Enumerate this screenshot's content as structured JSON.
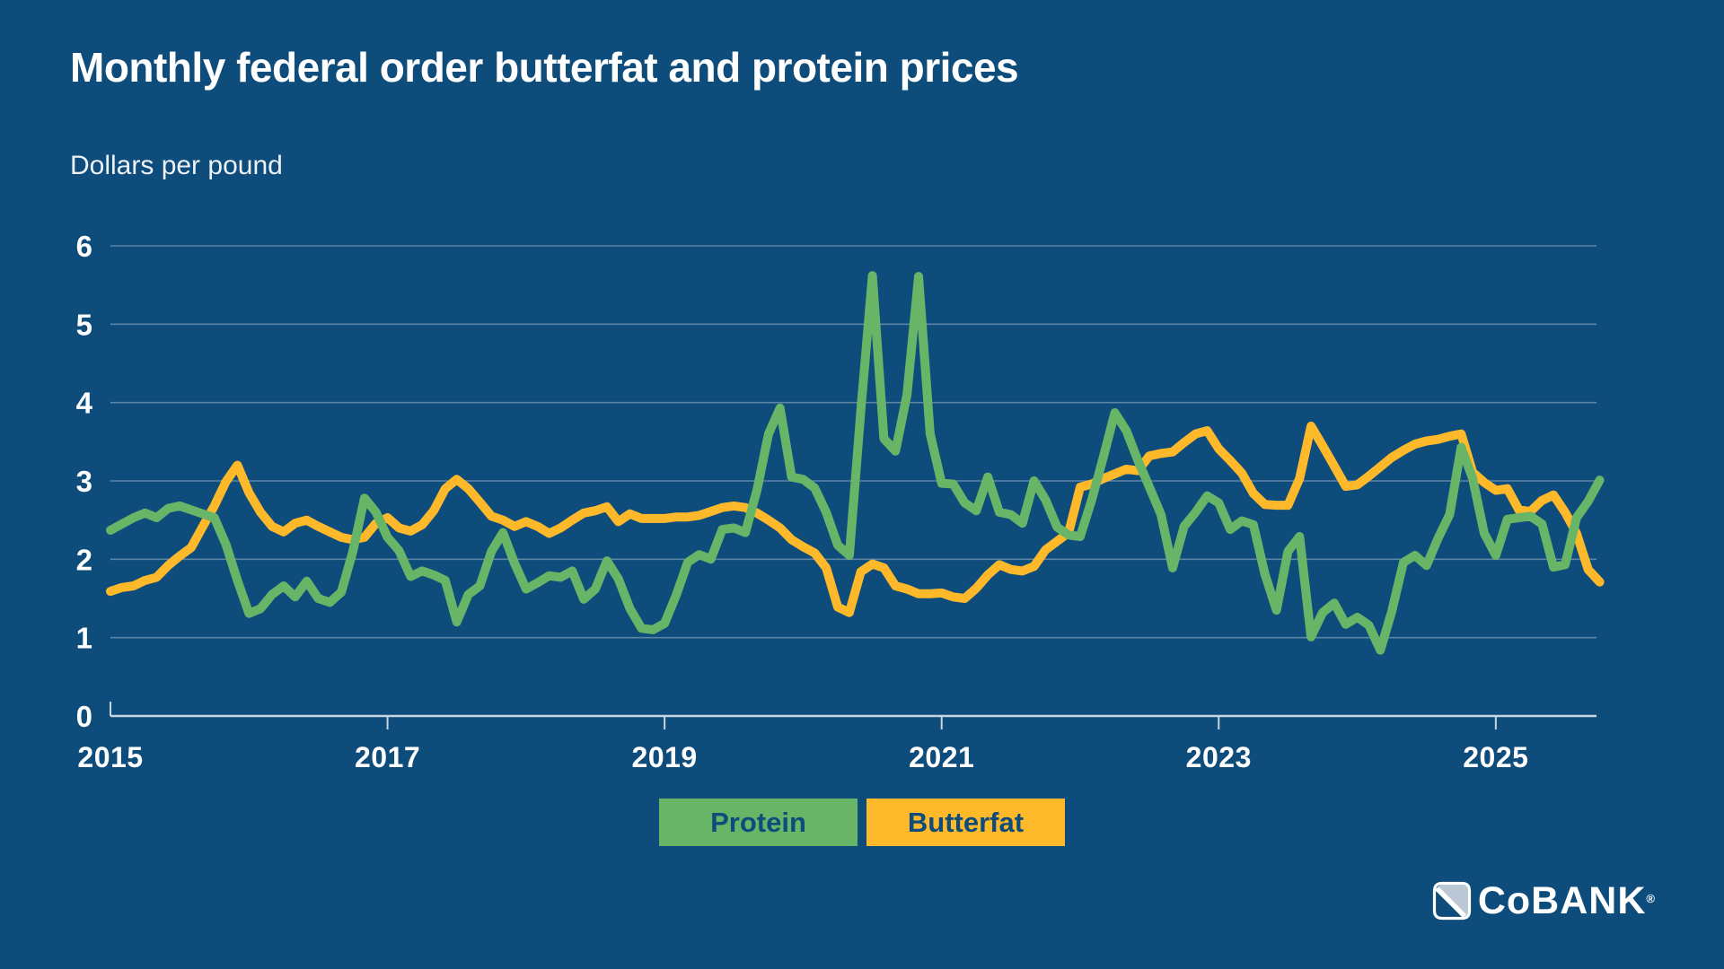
{
  "page": {
    "background": "#0D4C7B"
  },
  "header": {
    "title": "Monthly federal order butterfat and protein prices",
    "subtitle": "Dollars per pound"
  },
  "chart_data": {
    "type": "line",
    "title": "Monthly federal order butterfat and protein prices",
    "ylabel": "Dollars per pound",
    "xlabel": "",
    "grid": true,
    "ylim": [
      0,
      6
    ],
    "y_ticks": [
      0,
      1,
      2,
      3,
      4,
      5,
      6
    ],
    "x_start_year": 2015,
    "x_tick_years": [
      2015,
      2017,
      2019,
      2021,
      2023,
      2025
    ],
    "x_tick_labels": [
      "2015",
      "2017",
      "2019",
      "2021",
      "2023",
      "2025"
    ],
    "legend_position": "bottom",
    "series": [
      {
        "name": "Protein",
        "color": "#68B568",
        "values": [
          2.37,
          2.45,
          2.53,
          2.59,
          2.53,
          2.65,
          2.68,
          2.63,
          2.58,
          2.53,
          2.19,
          1.73,
          1.31,
          1.37,
          1.55,
          1.66,
          1.52,
          1.72,
          1.5,
          1.45,
          1.58,
          2.1,
          2.78,
          2.6,
          2.28,
          2.11,
          1.78,
          1.85,
          1.8,
          1.73,
          1.2,
          1.55,
          1.66,
          2.1,
          2.34,
          1.95,
          1.62,
          1.7,
          1.79,
          1.77,
          1.85,
          1.49,
          1.62,
          1.98,
          1.75,
          1.37,
          1.12,
          1.1,
          1.18,
          1.54,
          1.96,
          2.06,
          2.0,
          2.38,
          2.4,
          2.34,
          2.88,
          3.6,
          3.93,
          3.05,
          3.02,
          2.91,
          2.6,
          2.18,
          2.05,
          3.9,
          5.62,
          3.54,
          3.38,
          4.1,
          5.61,
          3.6,
          2.97,
          2.96,
          2.72,
          2.62,
          3.05,
          2.6,
          2.57,
          2.46,
          3.0,
          2.76,
          2.41,
          2.31,
          2.29,
          2.76,
          3.3,
          3.87,
          3.64,
          3.26,
          2.92,
          2.57,
          1.89,
          2.42,
          2.6,
          2.81,
          2.72,
          2.38,
          2.49,
          2.44,
          1.81,
          1.35,
          2.1,
          2.29,
          1.01,
          1.32,
          1.44,
          1.17,
          1.26,
          1.16,
          0.84,
          1.34,
          1.96,
          2.05,
          1.92,
          2.27,
          2.57,
          3.43,
          3.03,
          2.33,
          2.05,
          2.51,
          2.53,
          2.55,
          2.45,
          1.9,
          1.93,
          2.53,
          2.74,
          3.01
        ]
      },
      {
        "name": "Butterfat",
        "color": "#FDB92A",
        "values": [
          1.59,
          1.64,
          1.66,
          1.73,
          1.77,
          1.92,
          2.04,
          2.15,
          2.42,
          2.68,
          2.99,
          3.2,
          2.85,
          2.6,
          2.42,
          2.35,
          2.46,
          2.5,
          2.42,
          2.35,
          2.28,
          2.25,
          2.28,
          2.46,
          2.53,
          2.4,
          2.36,
          2.44,
          2.62,
          2.9,
          3.02,
          2.9,
          2.73,
          2.55,
          2.5,
          2.42,
          2.48,
          2.42,
          2.33,
          2.4,
          2.5,
          2.59,
          2.62,
          2.67,
          2.48,
          2.58,
          2.52,
          2.52,
          2.52,
          2.54,
          2.54,
          2.56,
          2.61,
          2.66,
          2.68,
          2.66,
          2.59,
          2.5,
          2.4,
          2.25,
          2.16,
          2.08,
          1.89,
          1.39,
          1.32,
          1.84,
          1.94,
          1.89,
          1.66,
          1.62,
          1.56,
          1.56,
          1.57,
          1.52,
          1.5,
          1.63,
          1.8,
          1.93,
          1.87,
          1.85,
          1.91,
          2.12,
          2.23,
          2.34,
          2.92,
          2.96,
          3.03,
          3.09,
          3.15,
          3.13,
          3.32,
          3.35,
          3.37,
          3.49,
          3.6,
          3.64,
          3.41,
          3.26,
          3.1,
          2.84,
          2.7,
          2.69,
          2.69,
          3.03,
          3.7,
          3.45,
          3.19,
          2.93,
          2.95,
          3.06,
          3.18,
          3.3,
          3.39,
          3.47,
          3.51,
          3.53,
          3.57,
          3.6,
          3.11,
          2.98,
          2.88,
          2.9,
          2.63,
          2.61,
          2.75,
          2.82,
          2.6,
          2.33,
          1.87,
          1.71
        ]
      }
    ]
  },
  "legend": {
    "items": [
      {
        "label": "Protein",
        "color": "#68B568"
      },
      {
        "label": "Butterfat",
        "color": "#FDB92A"
      }
    ],
    "text_color": "#0D4C7B"
  },
  "logo": {
    "text": "CoBANK",
    "registered": "®"
  }
}
